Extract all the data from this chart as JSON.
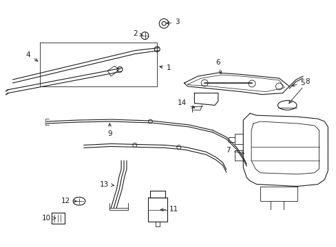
{
  "background_color": "#ffffff",
  "line_color": "#1a1a1a",
  "figsize": [
    4.89,
    3.6
  ],
  "dpi": 100
}
